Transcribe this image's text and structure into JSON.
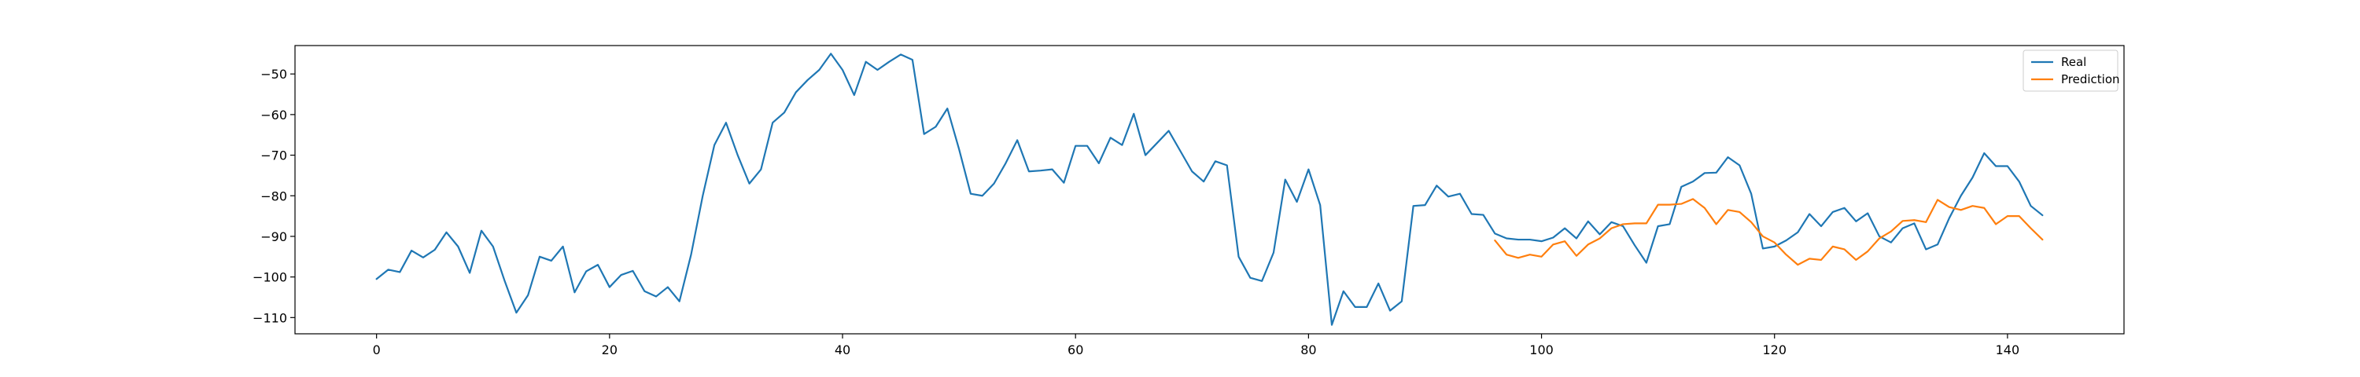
{
  "chart_data": {
    "type": "line",
    "title": "",
    "xlabel": "",
    "ylabel": "",
    "xlim": [
      -7,
      150
    ],
    "ylim": [
      -114,
      -43
    ],
    "xticks": [
      0,
      20,
      40,
      60,
      80,
      100,
      120,
      140
    ],
    "yticks": [
      -50,
      -60,
      -70,
      -80,
      -90,
      -100,
      -110
    ],
    "grid": false,
    "legend_position": "top-right",
    "series": [
      {
        "name": "Real",
        "color": "#1f77b4",
        "x_start": 0,
        "values": [
          -100.5,
          -98.2,
          -98.8,
          -93.5,
          -95.2,
          -93.3,
          -89.0,
          -92.5,
          -99.0,
          -88.6,
          -92.5,
          -101.0,
          -108.8,
          -104.5,
          -95.0,
          -96.0,
          -92.5,
          -103.8,
          -98.6,
          -97.0,
          -102.5,
          -99.5,
          -98.5,
          -103.5,
          -104.8,
          -102.5,
          -106.0,
          -94.5,
          -80.0,
          -67.5,
          -62.0,
          -70.0,
          -77.0,
          -73.5,
          -62.0,
          -59.5,
          -54.5,
          -51.5,
          -49.0,
          -45.0,
          -49.0,
          -55.2,
          -47.0,
          -49.0,
          -47.0,
          -45.2,
          -46.5,
          -64.8,
          -63.0,
          -58.5,
          -68.5,
          -79.5,
          -80.0,
          -77.0,
          -72.0,
          -66.3,
          -74.0,
          -73.8,
          -73.5,
          -76.8,
          -67.7,
          -67.7,
          -72.0,
          -65.7,
          -67.5,
          -59.8,
          -70.0,
          -67.0,
          -64.0,
          -69.0,
          -74.0,
          -76.5,
          -71.5,
          -72.5,
          -95.0,
          -100.2,
          -101.0,
          -94.0,
          -76.0,
          -81.5,
          -73.5,
          -82.3,
          -111.8,
          -103.5,
          -107.4,
          -107.4,
          -101.6,
          -108.3,
          -106.0,
          -82.5,
          -82.3,
          -77.5,
          -80.2,
          -79.5,
          -84.5,
          -84.7,
          -89.3,
          -90.5,
          -90.8,
          -90.8,
          -91.2,
          -90.3,
          -88.0,
          -90.5,
          -86.3,
          -89.5,
          -86.5,
          -87.5,
          -92.2,
          -96.5,
          -87.5,
          -87.0,
          -77.8,
          -76.5,
          -74.4,
          -74.3,
          -70.5,
          -72.5,
          -79.5,
          -93.0,
          -92.5,
          -91.0,
          -89.0,
          -84.5,
          -87.5,
          -84.0,
          -83.0,
          -86.3,
          -84.3,
          -90.0,
          -91.5,
          -88.0,
          -86.8,
          -93.2,
          -92.0,
          -85.5,
          -80.0,
          -75.5,
          -69.5,
          -72.7,
          -72.7,
          -76.5,
          -82.5,
          -84.8
        ]
      },
      {
        "name": "Prediction",
        "color": "#ff7f0e",
        "x_start": 96,
        "values": [
          -91.0,
          -94.5,
          -95.3,
          -94.5,
          -95.0,
          -92.0,
          -91.2,
          -94.8,
          -92.0,
          -90.5,
          -88.0,
          -87.0,
          -86.8,
          -86.8,
          -82.2,
          -82.2,
          -82.0,
          -80.8,
          -83.0,
          -87.0,
          -83.5,
          -84.0,
          -86.5,
          -90.0,
          -91.5,
          -94.5,
          -97.0,
          -95.5,
          -95.8,
          -92.5,
          -93.2,
          -95.8,
          -93.7,
          -90.5,
          -88.8,
          -86.2,
          -86.0,
          -86.5,
          -81.0,
          -82.8,
          -83.5,
          -82.5,
          -83.0,
          -87.0,
          -85.0,
          -85.0,
          -88.0,
          -90.8
        ]
      }
    ]
  }
}
